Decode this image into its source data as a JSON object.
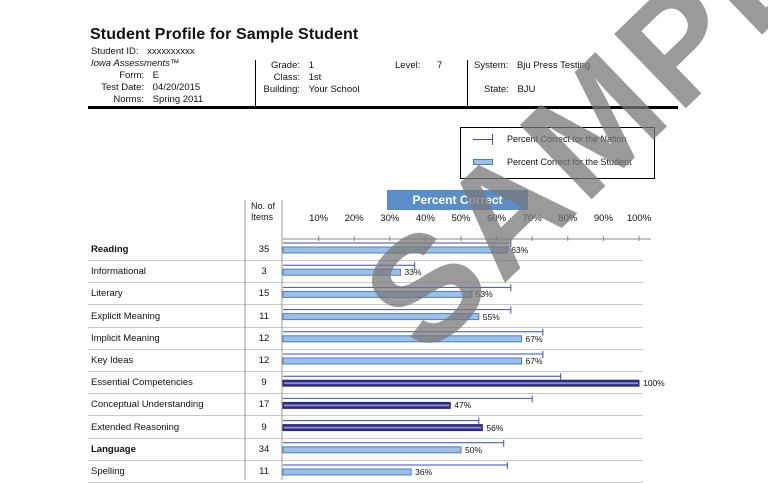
{
  "title": "Student Profile for Sample Student",
  "student": {
    "id_label": "Student ID:",
    "id_value": "xxxxxxxxxx",
    "assessment": "Iowa Assessments™",
    "form_label": "Form:",
    "form_value": "E",
    "test_date_label": "Test Date:",
    "test_date_value": "04/20/2015",
    "norms_label": "Norms:",
    "norms_value": "Spring 2011"
  },
  "class_info": {
    "grade_label": "Grade:",
    "grade_value": "1",
    "class_label": "Class:",
    "class_value": "1st",
    "building_label": "Building:",
    "building_value": "Your School",
    "level_label": "Level:",
    "level_value": "7"
  },
  "system_info": {
    "system_label": "System:",
    "system_value": "Bju Press Testing",
    "state_label": "State:",
    "state_value": "BJU"
  },
  "legend": {
    "nation": "Percent Correct for the Nation",
    "student": "Percent Correct for the Student"
  },
  "chart_header": "Percent Correct",
  "no_items_header": "No. of Items",
  "colors": {
    "header_blue": "#5b8ec9",
    "bar_light": "#9ec0e6",
    "bar_border_light": "#4a7fbf",
    "bar_dark": "#2e2c7a",
    "nation_line": "#3f4ea8"
  },
  "chart_data": {
    "type": "bar",
    "orientation": "horizontal",
    "x_ticks": [
      "10%",
      "20%",
      "30%",
      "40%",
      "50%",
      "60%",
      "70%",
      "80%",
      "90%",
      "100%"
    ],
    "xlim": [
      0,
      100
    ],
    "grid": false,
    "series": [
      {
        "name": "Percent Correct for the Student",
        "values": [
          63,
          33,
          53,
          55,
          67,
          67,
          100,
          47,
          56,
          50,
          36
        ]
      },
      {
        "name": "Percent Correct for the Nation",
        "values": [
          64,
          37,
          64,
          64,
          73,
          73,
          78,
          70,
          55,
          62,
          63
        ]
      }
    ],
    "rows": [
      {
        "label": "Reading",
        "items": "35",
        "student": 63,
        "nation": 64,
        "pct_label": "63%",
        "bold": true,
        "dark": false
      },
      {
        "label": "Informational",
        "items": "3",
        "student": 33,
        "nation": 37,
        "pct_label": "33%",
        "bold": false,
        "dark": false
      },
      {
        "label": "Literary",
        "items": "15",
        "student": 53,
        "nation": 64,
        "pct_label": "53%",
        "bold": false,
        "dark": false
      },
      {
        "label": "Explicit Meaning",
        "items": "11",
        "student": 55,
        "nation": 64,
        "pct_label": "55%",
        "bold": false,
        "dark": false
      },
      {
        "label": "Implicit Meaning",
        "items": "12",
        "student": 67,
        "nation": 73,
        "pct_label": "67%",
        "bold": false,
        "dark": false
      },
      {
        "label": "Key Ideas",
        "items": "12",
        "student": 67,
        "nation": 73,
        "pct_label": "67%",
        "bold": false,
        "dark": false
      },
      {
        "label": "Essential Competencies",
        "items": "9",
        "student": 100,
        "nation": 78,
        "pct_label": "100%",
        "bold": false,
        "dark": true
      },
      {
        "label": "Conceptual Understanding",
        "items": "17",
        "student": 47,
        "nation": 70,
        "pct_label": "47%",
        "bold": false,
        "dark": true
      },
      {
        "label": "Extended Reasoning",
        "items": "9",
        "student": 56,
        "nation": 55,
        "pct_label": "56%",
        "bold": false,
        "dark": true
      },
      {
        "label": "Language",
        "items": "34",
        "student": 50,
        "nation": 62,
        "pct_label": "50%",
        "bold": true,
        "dark": false
      },
      {
        "label": "Spelling",
        "items": "11",
        "student": 36,
        "nation": 63,
        "pct_label": "36%",
        "bold": false,
        "dark": false
      }
    ]
  },
  "watermark": "SAMPLE"
}
